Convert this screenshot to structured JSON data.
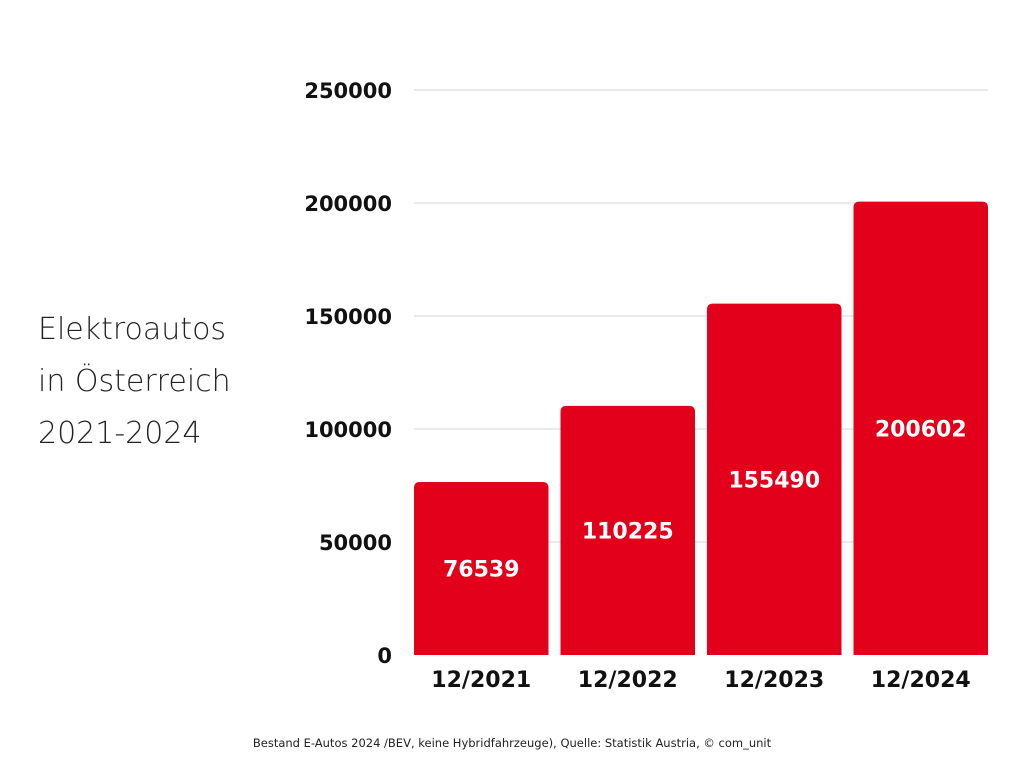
{
  "title_lines": [
    "Elektroautos",
    "in Österreich",
    "2021-2024"
  ],
  "footer": "Bestand E-Autos 2024 /BEV, keine Hybridfahrzeuge), Quelle: Statistik Austria, © com_unit",
  "chart_data": {
    "type": "bar",
    "title": "Elektroautos in Österreich 2021-2024",
    "categories": [
      "12/2021",
      "12/2022",
      "12/2023",
      "12/2024"
    ],
    "values": [
      76539,
      110225,
      155490,
      200602
    ],
    "ylim": [
      0,
      250000
    ],
    "yticks": [
      0,
      50000,
      100000,
      150000,
      200000,
      250000
    ],
    "grid": true,
    "legend": "none",
    "bar_color": "#e2001a",
    "grid_color": "#d4d4d4",
    "data_label_color": "#ffffff"
  }
}
